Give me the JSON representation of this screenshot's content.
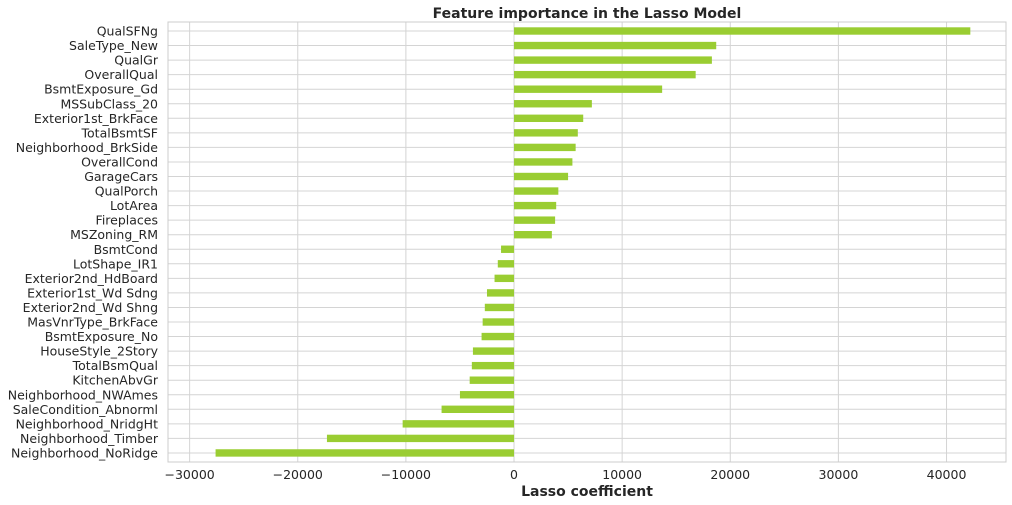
{
  "chart_data": {
    "type": "bar",
    "orientation": "horizontal",
    "title": "Feature importance in the Lasso Model",
    "xlabel": "Lasso coefficient",
    "ylabel": "",
    "xlim": [
      -32000,
      45500
    ],
    "xticks": [
      -30000,
      -20000,
      -10000,
      0,
      10000,
      20000,
      30000,
      40000
    ],
    "xtick_labels": [
      "−30000",
      "−20000",
      "−10000",
      "0",
      "10000",
      "20000",
      "30000",
      "40000"
    ],
    "grid": true,
    "bar_color": "#9acd32",
    "categories": [
      "QualSFNg",
      "SaleType_New",
      "QualGr",
      "OverallQual",
      "BsmtExposure_Gd",
      "MSSubClass_20",
      "Exterior1st_BrkFace",
      "TotalBsmtSF",
      "Neighborhood_BrkSide",
      "OverallCond",
      "GarageCars",
      "QualPorch",
      "LotArea",
      "Fireplaces",
      "MSZoning_RM",
      "BsmtCond",
      "LotShape_IR1",
      "Exterior2nd_HdBoard",
      "Exterior1st_Wd Sdng",
      "Exterior2nd_Wd Shng",
      "MasVnrType_BrkFace",
      "BsmtExposure_No",
      "HouseStyle_2Story",
      "TotalBsmQual",
      "KitchenAbvGr",
      "Neighborhood_NWAmes",
      "SaleCondition_Abnorml",
      "Neighborhood_NridgHt",
      "Neighborhood_Timber",
      "Neighborhood_NoRidge"
    ],
    "values": [
      42200,
      18700,
      18300,
      16800,
      13700,
      7200,
      6400,
      5900,
      5700,
      5400,
      5000,
      4100,
      3900,
      3800,
      3500,
      -1200,
      -1500,
      -1800,
      -2500,
      -2700,
      -2900,
      -3000,
      -3800,
      -3900,
      -4100,
      -5000,
      -6700,
      -10300,
      -17300,
      -27600
    ]
  }
}
